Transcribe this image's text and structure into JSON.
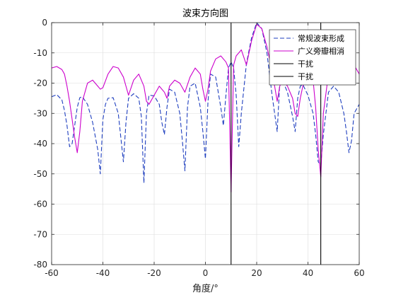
{
  "chart_data": {
    "type": "line",
    "title": "波束方向图",
    "xlabel": "角度/°",
    "ylabel": "",
    "xlim": [
      -60,
      60
    ],
    "ylim": [
      -80,
      0
    ],
    "xticks": [
      -60,
      -40,
      -20,
      0,
      20,
      40,
      60
    ],
    "yticks": [
      0,
      -10,
      -20,
      -30,
      -40,
      -50,
      -60,
      -70,
      -80
    ],
    "grid": true,
    "legend_position": "top-right",
    "series": [
      {
        "name": "常规波束形成",
        "color": "#1f3fbf",
        "style": "dashed",
        "x": [
          -60,
          -58,
          -56,
          -55,
          -54,
          -53,
          -52,
          -51,
          -50,
          -49,
          -48,
          -46,
          -44,
          -42,
          -41,
          -40,
          -39,
          -38,
          -36,
          -34,
          -33,
          -32,
          -31,
          -30,
          -28,
          -26,
          -25,
          -24,
          -23,
          -22,
          -20,
          -18,
          -17,
          -16,
          -15,
          -14,
          -12,
          -10,
          -9,
          -8,
          -7,
          -6,
          -4,
          -2,
          -1,
          0,
          1,
          2,
          4,
          6,
          7,
          8,
          9,
          10,
          11,
          12,
          13,
          14,
          16,
          18,
          20,
          22,
          24,
          26,
          27,
          28,
          29,
          30,
          32,
          34,
          35,
          36,
          37,
          38,
          40,
          42,
          43,
          44,
          45,
          46,
          48,
          50,
          52,
          54,
          55,
          56,
          57,
          58,
          60
        ],
        "y": [
          -24.5,
          -23.8,
          -25.5,
          -29,
          -34,
          -41,
          -40,
          -34,
          -28,
          -24.8,
          -24.5,
          -27,
          -33,
          -42,
          -50,
          -32,
          -27,
          -25,
          -24.8,
          -30,
          -38,
          -46,
          -33,
          -25,
          -23.5,
          -25,
          -31,
          -53,
          -30,
          -24,
          -24.2,
          -27,
          -33,
          -37,
          -28,
          -22,
          -23,
          -30,
          -39,
          -49,
          -28,
          -21,
          -20,
          -28,
          -36,
          -45,
          -26,
          -17,
          -18,
          -28,
          -34,
          -24,
          -15,
          -13,
          -15,
          -24,
          -41,
          -30,
          -13.5,
          -5,
          0,
          -2,
          -10,
          -24,
          -30,
          -36,
          -20,
          -19,
          -23,
          -31,
          -36,
          -25,
          -21,
          -20.5,
          -24,
          -30,
          -37,
          -46,
          -47,
          -37,
          -23,
          -21,
          -23,
          -30,
          -36,
          -43,
          -39,
          -30,
          -27
        ]
      },
      {
        "name": "广义旁瓣相消",
        "color": "#cc00cc",
        "style": "solid",
        "x": [
          -60,
          -58,
          -56,
          -55,
          -54,
          -53,
          -52,
          -51,
          -50,
          -49,
          -48,
          -46,
          -44,
          -42,
          -41,
          -40,
          -38,
          -36,
          -34,
          -32,
          -31,
          -30,
          -28,
          -26,
          -25,
          -24,
          -23,
          -22,
          -20,
          -18,
          -16,
          -15,
          -14,
          -12,
          -10,
          -8,
          -6,
          -4,
          -2,
          -1,
          0,
          1,
          2,
          4,
          6,
          8,
          9,
          10,
          11,
          12,
          14,
          16,
          18,
          20,
          22,
          24,
          26,
          27,
          28,
          29,
          30,
          32,
          34,
          35,
          36,
          37,
          38,
          40,
          42,
          43,
          44,
          45,
          46,
          48,
          50,
          52,
          54,
          56,
          58,
          60
        ],
        "y": [
          -15,
          -14.5,
          -15.5,
          -17,
          -21,
          -26,
          -32,
          -38,
          -43,
          -36,
          -26,
          -20,
          -19,
          -21,
          -22,
          -21.5,
          -17,
          -14.5,
          -15,
          -18,
          -21,
          -24,
          -19,
          -17,
          -19,
          -21,
          -26,
          -27,
          -24,
          -21,
          -23,
          -25,
          -21,
          -19,
          -20,
          -23,
          -18,
          -15,
          -17,
          -22,
          -26,
          -22,
          -16,
          -12,
          -11,
          -13,
          -15,
          -56,
          -14,
          -11,
          -9,
          -14,
          -6,
          -0.5,
          -2,
          -8,
          -16,
          -21,
          -26,
          -21,
          -19,
          -21,
          -25,
          -30,
          -31,
          -25,
          -21,
          -17,
          -19,
          -28,
          -42,
          -51,
          -30,
          -17,
          -14,
          -12,
          -11,
          -11.5,
          -14,
          -17
        ]
      },
      {
        "name": "干扰",
        "color": "#000000",
        "style": "solid",
        "vertical_at": 10
      },
      {
        "name": "干扰",
        "color": "#000000",
        "style": "solid",
        "vertical_at": 45
      }
    ]
  }
}
